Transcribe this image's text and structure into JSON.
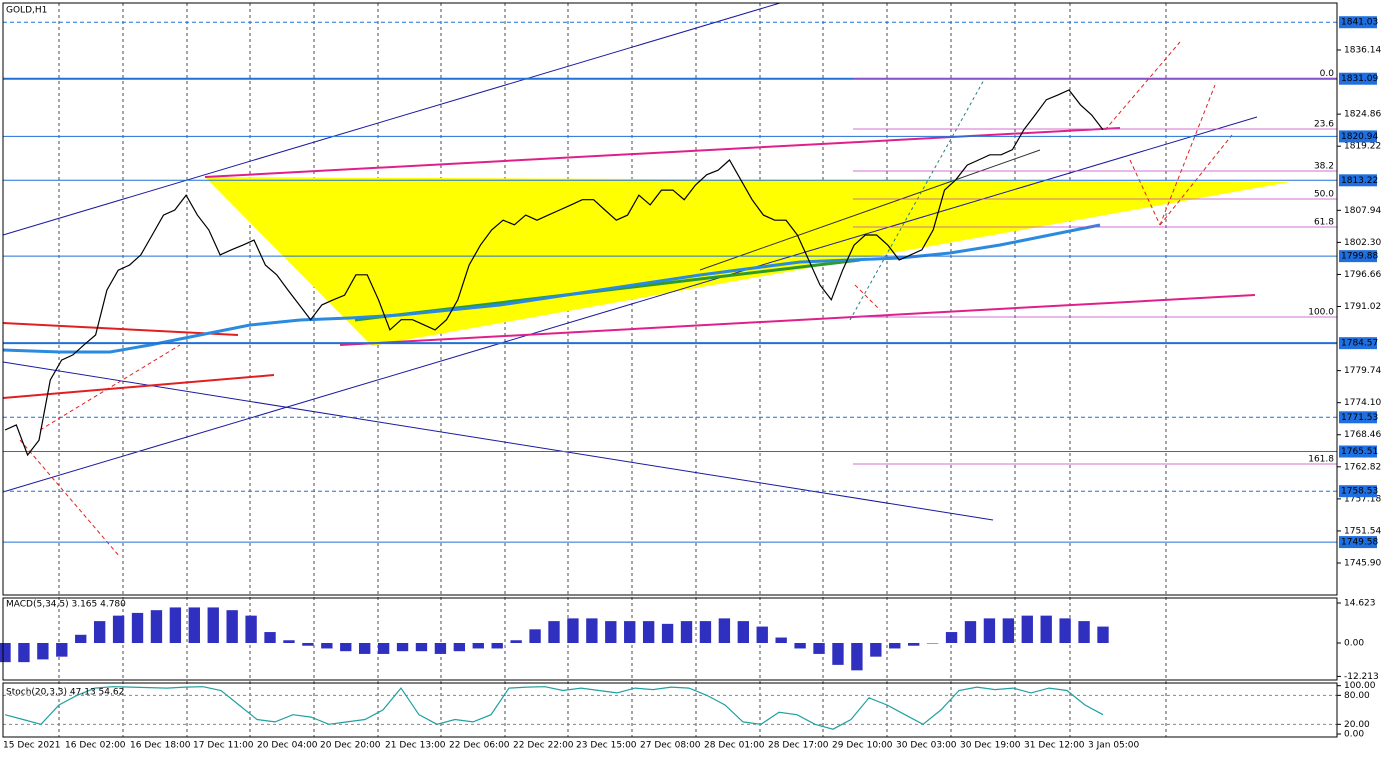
{
  "chart_data": [
    {
      "type": "line",
      "title": "GOLD,H1",
      "color": "#000000",
      "values": [
        1769.3,
        1770.2,
        1764.9,
        1767.5,
        1778.1,
        1781.6,
        1782.5,
        1784.3,
        1786.0,
        1793.9,
        1797.4,
        1798.3,
        1800.1,
        1803.6,
        1807.1,
        1808.0,
        1810.6,
        1807.1,
        1804.5,
        1800.1,
        1801.0,
        1801.8,
        1802.7,
        1798.3,
        1796.6,
        1793.9,
        1791.3,
        1788.7,
        1791.3,
        1792.2,
        1793.0,
        1796.6,
        1796.6,
        1792.2,
        1786.9,
        1788.7,
        1788.7,
        1787.8,
        1786.9,
        1788.7,
        1792.2,
        1798.3,
        1801.8,
        1804.5,
        1806.2,
        1805.4,
        1807.1,
        1806.2,
        1807.1,
        1808.0,
        1808.9,
        1809.8,
        1809.8,
        1808.0,
        1806.2,
        1807.1,
        1810.6,
        1808.9,
        1811.5,
        1811.5,
        1809.8,
        1812.4,
        1814.2,
        1815.0,
        1816.8,
        1813.3,
        1809.8,
        1807.1,
        1806.2,
        1806.2,
        1803.6,
        1799.2,
        1794.8,
        1792.2,
        1797.4,
        1801.8,
        1803.6,
        1803.6,
        1801.8,
        1799.2,
        1800.1,
        1801.0,
        1804.5,
        1811.5,
        1813.3,
        1815.9,
        1816.8,
        1817.7,
        1817.7,
        1818.6,
        1822.1,
        1824.7,
        1827.4,
        1828.2,
        1829.1,
        1826.5,
        1824.7,
        1822.1
      ],
      "ylim": [
        1740.27,
        1844.41
      ],
      "yticks": [
        1836.14,
        1824.86,
        1819.22,
        1807.94,
        {
          "value": 1802.3,
          "label": "1802.30"
        },
        1796.66,
        1791.02,
        1779.74,
        {
          "value": 1774.1,
          "label": "1774.10"
        },
        1768.46,
        1762.82,
        1757.18,
        1751.54,
        {
          "value": 1745.9,
          "label": "1745.90"
        }
      ],
      "levels": [
        {
          "value": 1841.03,
          "dashed": true,
          "thick": false
        },
        {
          "value": 1831.09,
          "dashed": false,
          "thick": true
        },
        {
          "value": 1820.94,
          "dashed": false,
          "thick": false
        },
        {
          "value": 1813.22,
          "dashed": false,
          "thick": false
        },
        {
          "value": 1799.88,
          "dashed": false,
          "thick": false
        },
        {
          "value": 1784.57,
          "dashed": false,
          "thick": true
        },
        {
          "value": 1771.53,
          "dashed": true,
          "thick": false
        },
        {
          "value": 1765.51,
          "dashed": false,
          "thick": false
        },
        {
          "value": 1758.53,
          "dashed": true,
          "thick": false
        },
        {
          "value": 1749.58,
          "dashed": false,
          "thick": false
        }
      ],
      "fib_levels": [
        {
          "label": "0.0",
          "value": 1831.09
        },
        {
          "label": "23.6",
          "value": 1822.24
        },
        {
          "label": "38.2",
          "value": 1814.86
        },
        {
          "label": "50.0",
          "value": 1809.93
        },
        {
          "label": "61.8",
          "value": 1805.0
        },
        {
          "label": "100.0",
          "value": 1789.17
        },
        {
          "label": "161.8",
          "value": 1763.32
        }
      ],
      "xtick_labels": [
        "15 Dec 2021",
        "16 Dec 02:00",
        "16 Dec 18:00",
        "17 Dec 11:00",
        "20 Dec 04:00",
        "20 Dec 20:00",
        "21 Dec 13:00",
        "22 Dec 06:00",
        "22 Dec 22:00",
        "23 Dec 15:00",
        "27 Dec 08:00",
        "28 Dec 01:00",
        "28 Dec 17:00",
        "29 Dec 10:00",
        "30 Dec 03:00",
        "30 Dec 19:00",
        "31 Dec 12:00",
        "3 Jan 05:00"
      ]
    },
    {
      "type": "bar",
      "title": "MACD(5,34,5) 3.165 4.780",
      "color": "#3030c0",
      "values": [
        -7,
        -7,
        -6,
        -5,
        3,
        8,
        10,
        11,
        12,
        13,
        13,
        13,
        12,
        10,
        4,
        1,
        -1,
        -2,
        -3,
        -4,
        -4,
        -3,
        -3,
        -4,
        -3,
        -2,
        -2,
        1,
        5,
        8,
        9,
        9,
        8,
        8,
        8,
        7,
        8,
        8,
        9,
        8,
        6,
        2,
        -2,
        -4,
        -8,
        -10,
        -5,
        -2,
        -1,
        0,
        4,
        8,
        9,
        9,
        10,
        10,
        9,
        8,
        6
      ],
      "ylim": [
        -13.53,
        16.45
      ],
      "yticks": [
        14.623,
        {
          "value": 0,
          "label": "0.00"
        },
        -12.213
      ]
    },
    {
      "type": "line",
      "title": "Stoch(20,3,3) 47.13 54.62",
      "color": "#20a0a0",
      "values": [
        40,
        30,
        20,
        60,
        80,
        95,
        98,
        97,
        96,
        95,
        97,
        98,
        90,
        60,
        30,
        25,
        40,
        35,
        20,
        25,
        30,
        50,
        95,
        40,
        20,
        30,
        25,
        40,
        95,
        97,
        98,
        90,
        95,
        90,
        85,
        95,
        92,
        97,
        95,
        80,
        60,
        25,
        20,
        45,
        40,
        20,
        10,
        30,
        75,
        60,
        40,
        20,
        50,
        90,
        97,
        92,
        95,
        85,
        95,
        90,
        60,
        40
      ],
      "ylim": [
        0,
        100
      ],
      "yticks": [
        {
          "value": 100,
          "label": "100.00"
        },
        {
          "value": 80,
          "label": "80.00"
        },
        {
          "value": 20,
          "label": "20.00"
        },
        {
          "value": 0,
          "label": "0.00"
        }
      ]
    }
  ]
}
